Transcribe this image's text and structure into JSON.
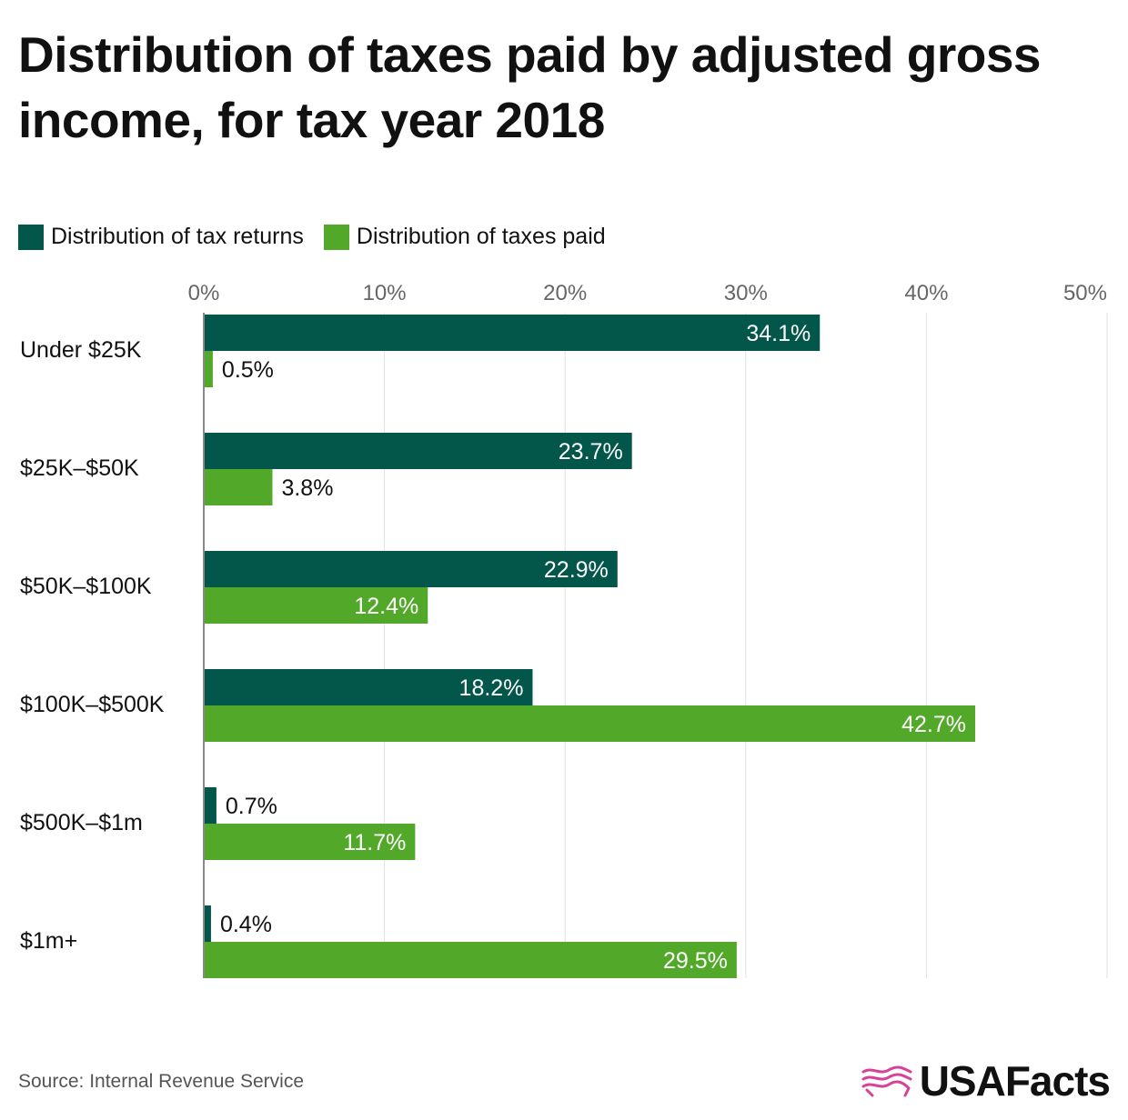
{
  "title_lines": [
    "Distribution of taxes paid by adjusted gross",
    "income, for tax year 2018"
  ],
  "legend": [
    {
      "label": "Distribution of tax returns",
      "color": "#02574a"
    },
    {
      "label": "Distribution of taxes paid",
      "color": "#52a829"
    }
  ],
  "source": "Source: Internal Revenue Service",
  "brand": "USAFacts",
  "brand_logo_color": "#d6419b",
  "chart_data": {
    "type": "bar",
    "orientation": "horizontal",
    "categories": [
      "Under $25K",
      "$25K–$50K",
      "$50K–$100K",
      "$100K–$500K",
      "$500K–$1m",
      "$1m+"
    ],
    "series": [
      {
        "name": "Distribution of tax returns",
        "color": "#02574a",
        "values": [
          34.1,
          23.7,
          22.9,
          18.2,
          0.7,
          0.4
        ],
        "labels": [
          "34.1%",
          "23.7%",
          "22.9%",
          "18.2%",
          "0.7%",
          "0.4%"
        ]
      },
      {
        "name": "Distribution of taxes paid",
        "color": "#52a829",
        "values": [
          0.5,
          3.8,
          12.4,
          42.7,
          11.7,
          29.5
        ],
        "labels": [
          "0.5%",
          "3.8%",
          "12.4%",
          "42.7%",
          "11.7%",
          "29.5%"
        ]
      }
    ],
    "x_ticks": [
      0,
      10,
      20,
      30,
      40,
      50
    ],
    "x_tick_labels": [
      "0%",
      "10%",
      "20%",
      "30%",
      "40%",
      "50%"
    ],
    "xlim": [
      0,
      50
    ],
    "grid": true,
    "legend_position": "top-left",
    "xlabel": "",
    "ylabel": ""
  }
}
